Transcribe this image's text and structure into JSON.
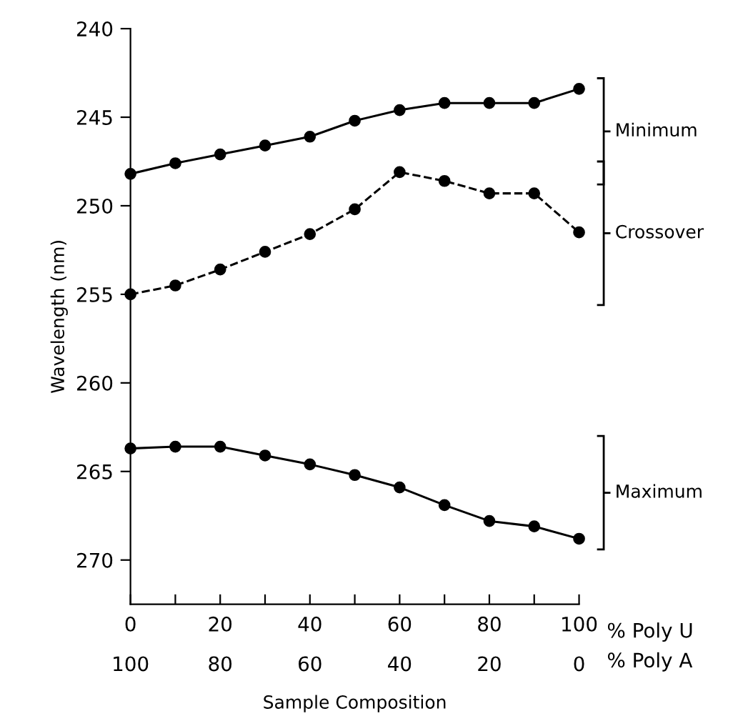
{
  "chart_data": {
    "type": "line",
    "xlabel": "Sample Composition",
    "ylabel": "Wavelength (nm)",
    "x": [
      0,
      10,
      20,
      30,
      40,
      50,
      60,
      70,
      80,
      90,
      100
    ],
    "series": [
      {
        "name": "Minimum",
        "color": "#000000",
        "line_style": "solid",
        "values": [
          248.2,
          247.6,
          247.1,
          246.6,
          246.1,
          245.2,
          244.6,
          244.2,
          244.2,
          244.2,
          243.4
        ]
      },
      {
        "name": "Crossover",
        "color": "#000000",
        "line_style": "dashed",
        "values": [
          255.0,
          254.5,
          253.6,
          252.6,
          251.6,
          250.2,
          248.1,
          248.6,
          249.3,
          249.3,
          251.5
        ]
      },
      {
        "name": "Maximum",
        "color": "#000000",
        "line_style": "solid",
        "values": [
          263.7,
          263.6,
          263.6,
          264.1,
          264.6,
          265.2,
          265.9,
          266.9,
          267.8,
          268.1,
          268.8
        ]
      }
    ],
    "xlim": [
      0,
      100
    ],
    "xticks": [
      0,
      {
        "value": 10,
        "label": null
      },
      20,
      {
        "value": 30,
        "label": null
      },
      40,
      {
        "value": 50,
        "label": null
      },
      60,
      {
        "value": 70,
        "label": null
      },
      80,
      {
        "value": 90,
        "label": null
      },
      100
    ],
    "x2lim": [
      100,
      0
    ],
    "x2ticks": [
      100,
      80,
      60,
      40,
      20,
      0
    ],
    "ylim": [
      272.5,
      240
    ],
    "yticks": [
      240,
      245,
      250,
      255,
      260,
      265,
      270
    ],
    "annotations": [
      "% Poly U",
      "% Poly A"
    ],
    "marker": "circle",
    "grid": false,
    "legend": false
  }
}
